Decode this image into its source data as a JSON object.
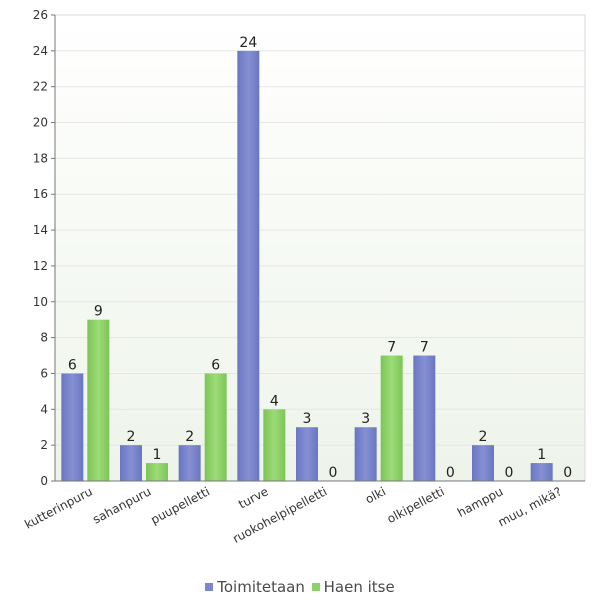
{
  "chart_data": {
    "type": "bar",
    "title": "",
    "xlabel": "",
    "ylabel": "",
    "ylim": [
      0,
      26
    ],
    "yticks": [
      0,
      2,
      4,
      6,
      8,
      10,
      12,
      14,
      16,
      18,
      20,
      22,
      24,
      26
    ],
    "grid": true,
    "legend_position": "bottom",
    "categories": [
      "kutterinpuru",
      "sahanpuru",
      "puupelletti",
      "turve",
      "ruokohelpipelletti",
      "olki",
      "olkipelletti",
      "hamppu",
      "muu, mikä?"
    ],
    "series": [
      {
        "name": "Toimitetaan",
        "color": "#7b86cc",
        "values": [
          6,
          2,
          2,
          24,
          3,
          3,
          7,
          2,
          1
        ]
      },
      {
        "name": "Haen itse",
        "color": "#8fd16a",
        "values": [
          9,
          1,
          6,
          4,
          0,
          7,
          0,
          0,
          0
        ]
      }
    ]
  }
}
